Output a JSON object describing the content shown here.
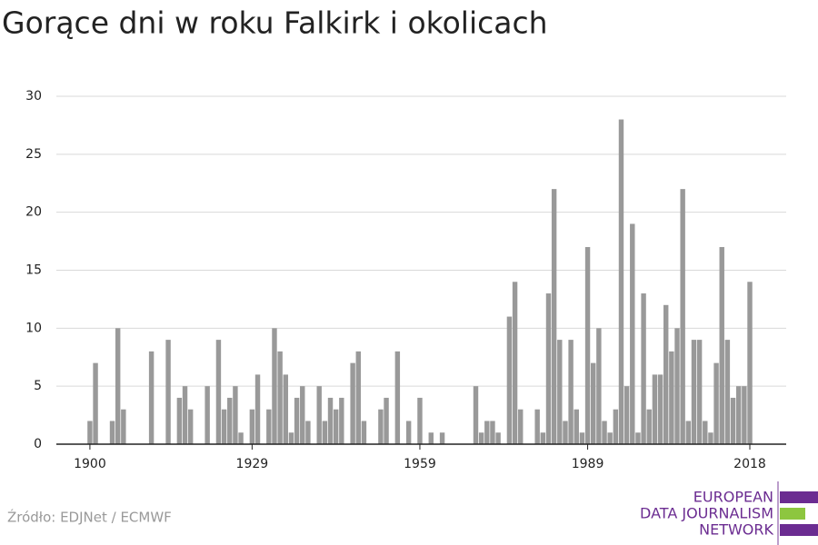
{
  "chart_data": {
    "type": "bar",
    "title": "Gorące dni w roku Falkirk i okolicach",
    "x": [
      1900,
      1901,
      1904,
      1905,
      1906,
      1911,
      1914,
      1916,
      1917,
      1918,
      1921,
      1923,
      1924,
      1925,
      1926,
      1927,
      1929,
      1930,
      1932,
      1933,
      1934,
      1935,
      1936,
      1937,
      1938,
      1939,
      1941,
      1942,
      1943,
      1944,
      1945,
      1947,
      1948,
      1949,
      1952,
      1953,
      1955,
      1957,
      1959,
      1961,
      1963,
      1969,
      1970,
      1971,
      1972,
      1973,
      1975,
      1976,
      1977,
      1980,
      1981,
      1982,
      1983,
      1984,
      1985,
      1986,
      1987,
      1988,
      1989,
      1990,
      1991,
      1992,
      1993,
      1994,
      1995,
      1996,
      1997,
      1998,
      1999,
      2000,
      2001,
      2002,
      2003,
      2004,
      2005,
      2006,
      2007,
      2008,
      2009,
      2010,
      2011,
      2012,
      2013,
      2014,
      2015,
      2016,
      2017,
      2018
    ],
    "values": [
      2,
      7,
      2,
      10,
      3,
      8,
      9,
      4,
      5,
      3,
      5,
      9,
      3,
      4,
      5,
      1,
      3,
      6,
      3,
      10,
      8,
      6,
      1,
      4,
      5,
      2,
      5,
      2,
      4,
      3,
      4,
      7,
      8,
      2,
      3,
      4,
      8,
      2,
      4,
      1,
      1,
      5,
      1,
      2,
      2,
      1,
      11,
      14,
      3,
      3,
      1,
      13,
      22,
      9,
      2,
      9,
      3,
      1,
      17,
      7,
      10,
      2,
      1,
      3,
      28,
      5,
      19,
      1,
      13,
      3,
      6,
      6,
      12,
      8,
      10,
      22,
      2,
      9,
      9,
      2,
      1,
      7,
      17,
      9,
      4,
      5,
      5,
      14
    ],
    "color": "#999999",
    "xlim": [
      1894,
      2024.5
    ],
    "xticks": [
      1900,
      1929,
      1959,
      1989,
      2018
    ],
    "ylim": [
      0,
      30
    ],
    "yticks": [
      0,
      5,
      10,
      15,
      20,
      25,
      30
    ],
    "grid": true,
    "source": "Źródło: EDJNet / ECMWF",
    "logo": [
      "EUROPEAN",
      "DATA JOURNALISM",
      "NETWORK"
    ]
  }
}
